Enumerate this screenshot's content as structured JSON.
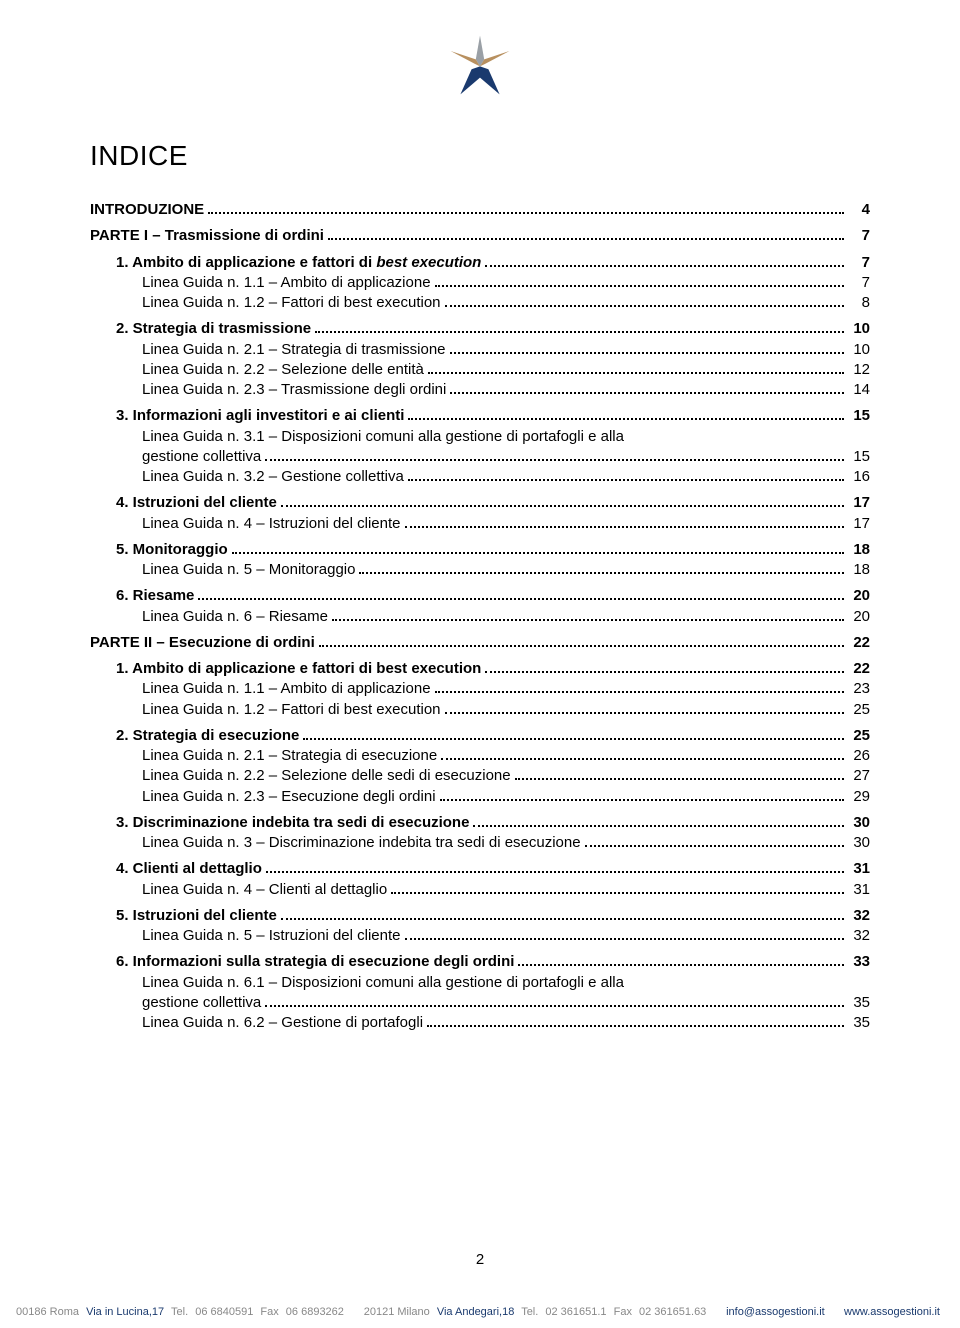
{
  "title": "INDICE",
  "page_number": "2",
  "colors": {
    "text": "#000000",
    "bg": "#ffffff",
    "footer_grey": "#888888",
    "footer_blue": "#1a3a6e",
    "logo_navy": "#1a3a6e",
    "logo_tan": "#b8905f",
    "logo_grey": "#9aa0a6"
  },
  "toc": [
    {
      "level": 0,
      "label": "INTRODUZIONE",
      "page": "4"
    },
    {
      "level": 0,
      "label": "PARTE I – Trasmissione di ordini",
      "page": "7"
    },
    {
      "level": 1,
      "label_html": "1. Ambito di applicazione e fattori di <span class='italic'>best execution</span>",
      "page": "7"
    },
    {
      "level": 2,
      "label": "Linea Guida n. 1.1 – Ambito di applicazione",
      "page": "7"
    },
    {
      "level": 2,
      "label": "Linea Guida n. 1.2 – Fattori di best execution",
      "page": "8"
    },
    {
      "level": 1,
      "label": "2. Strategia di trasmissione",
      "page": "10"
    },
    {
      "level": 2,
      "label": "Linea Guida n. 2.1 – Strategia di trasmissione",
      "page": "10"
    },
    {
      "level": 2,
      "label": "Linea Guida n. 2.2 – Selezione delle entità",
      "page": "12"
    },
    {
      "level": 2,
      "label": "Linea Guida n. 2.3 – Trasmissione degli ordini",
      "page": "14"
    },
    {
      "level": 1,
      "label": "3. Informazioni agli investitori e ai clienti",
      "page": "15"
    },
    {
      "level": 2,
      "wrap": true,
      "line1": "Linea Guida n. 3.1 – Disposizioni comuni alla gestione di portafogli e alla",
      "line2": "gestione collettiva",
      "page": "15"
    },
    {
      "level": 2,
      "label": "Linea Guida n. 3.2 – Gestione collettiva",
      "page": "16"
    },
    {
      "level": 1,
      "label": "4. Istruzioni del cliente",
      "page": "17"
    },
    {
      "level": 2,
      "label": "Linea Guida n. 4 – Istruzioni del cliente",
      "page": "17"
    },
    {
      "level": 1,
      "label": "5. Monitoraggio",
      "page": "18"
    },
    {
      "level": 2,
      "label": "Linea Guida n. 5 – Monitoraggio",
      "page": "18"
    },
    {
      "level": 1,
      "label": "6. Riesame",
      "page": "20"
    },
    {
      "level": 2,
      "label": "Linea Guida n. 6 – Riesame",
      "page": "20"
    },
    {
      "level": 0,
      "label": "PARTE II – Esecuzione di ordini",
      "page": "22"
    },
    {
      "level": 1,
      "label": "1. Ambito di applicazione e fattori di best execution",
      "page": "22"
    },
    {
      "level": 2,
      "label": "Linea Guida n. 1.1 – Ambito di applicazione",
      "page": "23"
    },
    {
      "level": 2,
      "label": "Linea Guida n. 1.2 – Fattori di best execution",
      "page": "25"
    },
    {
      "level": 1,
      "label": "2. Strategia di esecuzione",
      "page": "25"
    },
    {
      "level": 2,
      "label": "Linea Guida n. 2.1 – Strategia di esecuzione",
      "page": "26"
    },
    {
      "level": 2,
      "label": "Linea Guida n. 2.2 – Selezione delle sedi di esecuzione",
      "page": "27"
    },
    {
      "level": 2,
      "label": "Linea Guida n. 2.3 – Esecuzione degli ordini",
      "page": "29"
    },
    {
      "level": 1,
      "label": "3. Discriminazione indebita tra sedi di esecuzione",
      "page": "30"
    },
    {
      "level": 2,
      "label": "Linea Guida n. 3 – Discriminazione indebita tra sedi di esecuzione",
      "page": "30"
    },
    {
      "level": 1,
      "label": "4. Clienti al dettaglio",
      "page": "31"
    },
    {
      "level": 2,
      "label": "Linea Guida n. 4 – Clienti al dettaglio",
      "page": "31"
    },
    {
      "level": 1,
      "label": "5. Istruzioni del cliente",
      "page": "32"
    },
    {
      "level": 2,
      "label": "Linea Guida n. 5 – Istruzioni del cliente",
      "page": "32"
    },
    {
      "level": 1,
      "label": "6. Informazioni sulla strategia di esecuzione degli ordini",
      "page": "33"
    },
    {
      "level": 2,
      "wrap": true,
      "line1": "Linea Guida n. 6.1 – Disposizioni comuni alla gestione di portafogli e alla",
      "line2": "gestione collettiva",
      "page": "35"
    },
    {
      "level": 2,
      "label": "Linea Guida n. 6.2 – Gestione di portafogli",
      "page": "35"
    }
  ],
  "footer": {
    "left": {
      "city": "00186 Roma",
      "addr": "Via in Lucina,17",
      "tel_label": "Tel.",
      "tel": "06 6840591",
      "fax_label": "Fax",
      "fax": "06 6893262"
    },
    "mid": {
      "city": "20121 Milano",
      "addr": "Via Andegari,18",
      "tel_label": "Tel.",
      "tel": "02 361651.1",
      "fax_label": "Fax",
      "fax": "02 361651.63"
    },
    "right": {
      "email": "info@assogestioni.it",
      "site": "www.assogestioni.it"
    }
  }
}
